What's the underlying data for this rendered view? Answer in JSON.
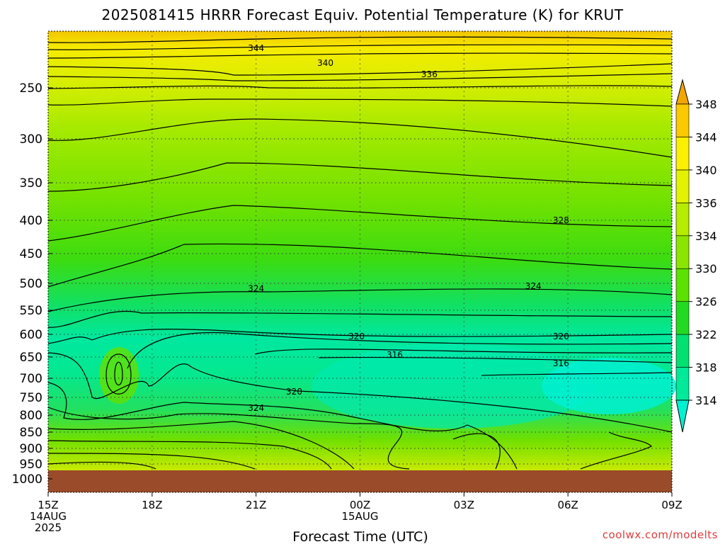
{
  "title": "2025081415 HRRR Forecast Equiv. Potential Temperature (K) for KRUT",
  "credit": "coolwx.com/modelts",
  "chart_data": {
    "type": "heatmap",
    "title": "2025081415 HRRR Forecast Equiv. Potential Temperature (K) for KRUT",
    "xlabel": "Forecast Time (UTC)",
    "ylabel": "",
    "x_range_hours": [
      0,
      18
    ],
    "x_ticks": [
      {
        "hour": 0,
        "lines": [
          "15Z",
          "14AUG",
          "2025"
        ]
      },
      {
        "hour": 3,
        "lines": [
          "18Z"
        ]
      },
      {
        "hour": 6,
        "lines": [
          "21Z"
        ]
      },
      {
        "hour": 9,
        "lines": [
          "00Z",
          "15AUG"
        ]
      },
      {
        "hour": 12,
        "lines": [
          "03Z"
        ]
      },
      {
        "hour": 15,
        "lines": [
          "06Z"
        ]
      },
      {
        "hour": 18,
        "lines": [
          "09Z"
        ]
      }
    ],
    "y_ticks": [
      250,
      300,
      350,
      400,
      450,
      500,
      550,
      600,
      650,
      700,
      750,
      800,
      850,
      900,
      950,
      1000
    ],
    "y_axis_direction": "pressure (hPa), decreasing upward",
    "grid": true,
    "colorbar": {
      "ticks": [
        314,
        318,
        322,
        326,
        330,
        334,
        336,
        340,
        344,
        348
      ],
      "colors": [
        "#00f0d2",
        "#00ea9a",
        "#00e170",
        "#22da22",
        "#5ce200",
        "#8ae600",
        "#b5ec00",
        "#e2f200",
        "#fbf000",
        "#fcc800",
        "#f3a600"
      ],
      "extend": "both"
    },
    "contour_labels": [
      {
        "value": 344,
        "hour": 6.0,
        "pressure": 215
      },
      {
        "value": 340,
        "hour": 8.0,
        "pressure": 228
      },
      {
        "value": 336,
        "hour": 11.0,
        "pressure": 238
      },
      {
        "value": 328,
        "hour": 14.8,
        "pressure": 400
      },
      {
        "value": 324,
        "hour": 6.0,
        "pressure": 510
      },
      {
        "value": 324,
        "hour": 14.0,
        "pressure": 505
      },
      {
        "value": 320,
        "hour": 8.9,
        "pressure": 605
      },
      {
        "value": 320,
        "hour": 14.8,
        "pressure": 605
      },
      {
        "value": 316,
        "hour": 10.0,
        "pressure": 645
      },
      {
        "value": 316,
        "hour": 14.8,
        "pressure": 665
      },
      {
        "value": 320,
        "hour": 7.1,
        "pressure": 735
      },
      {
        "value": 324,
        "hour": 6.0,
        "pressure": 780
      }
    ],
    "approx_theta_e_by_pressure": [
      {
        "pressure": 215,
        "value": 345
      },
      {
        "pressure": 250,
        "value": 338
      },
      {
        "pressure": 300,
        "value": 333
      },
      {
        "pressure": 400,
        "value": 329
      },
      {
        "pressure": 500,
        "value": 325
      },
      {
        "pressure": 600,
        "value": 321
      },
      {
        "pressure": 700,
        "value": 316
      },
      {
        "pressure": 800,
        "value": 322
      },
      {
        "pressure": 900,
        "value": 330
      },
      {
        "pressure": 950,
        "value": 336
      }
    ]
  }
}
